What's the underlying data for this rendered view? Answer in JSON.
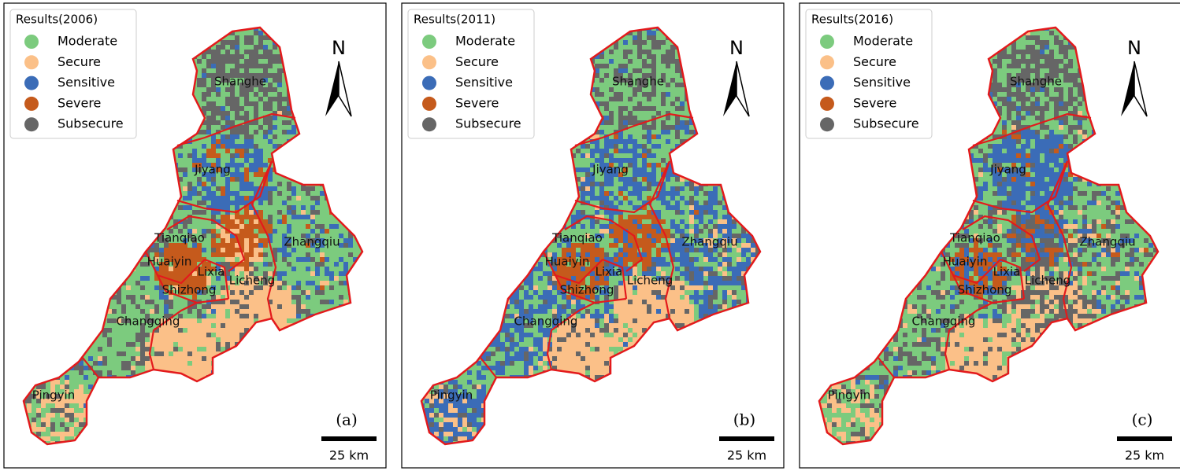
{
  "panels": [
    {
      "legend_title": "Results(2006)",
      "label": "(a)"
    },
    {
      "legend_title": "Results(2011)",
      "label": "(b)"
    },
    {
      "legend_title": "Results(2016)",
      "label": "(c)"
    }
  ],
  "legend_items": [
    {
      "name": "Moderate",
      "color": "#7ccb7e"
    },
    {
      "name": "Secure",
      "color": "#fbc088"
    },
    {
      "name": "Sensitive",
      "color": "#3b6cb7"
    },
    {
      "name": "Severe",
      "color": "#c55a1c"
    },
    {
      "name": "Subsecure",
      "color": "#666666"
    }
  ],
  "districts": [
    "Shanghe",
    "Jiyang",
    "Tianqiao",
    "Zhangqiu",
    "Huaiyin",
    "Lixia",
    "Licheng",
    "Shizhong",
    "Changqing",
    "Pingyin"
  ],
  "north": "N",
  "scale": "25 km"
}
